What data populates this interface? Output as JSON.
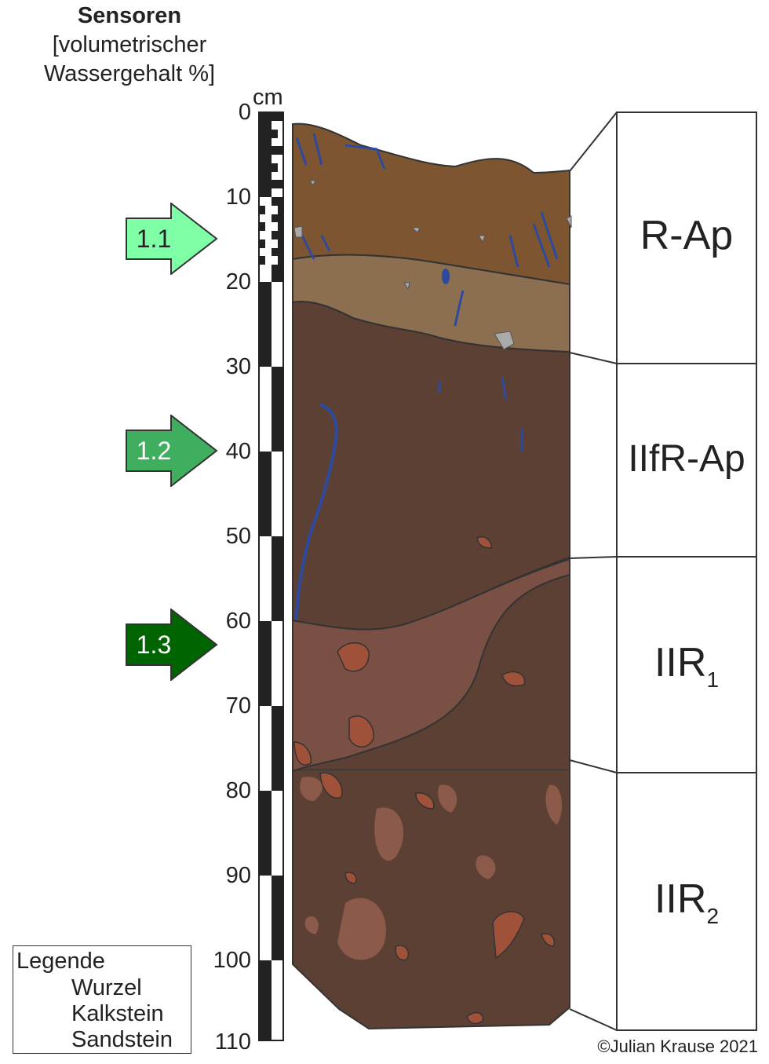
{
  "title": {
    "main": "Sensoren",
    "line1": "[volumetrischer",
    "line2": "Wassergehalt %]"
  },
  "scale": {
    "unit": "cm",
    "ticks": [
      "0",
      "10",
      "20",
      "30",
      "40",
      "50",
      "60",
      "70",
      "80",
      "90",
      "100",
      "110"
    ]
  },
  "sensors": [
    {
      "label": "1.1",
      "color": "#7fffa6",
      "text_color": "#222222"
    },
    {
      "label": "1.2",
      "color": "#3fae5e",
      "text_color": "#ffffff"
    },
    {
      "label": "1.3",
      "color": "#006400",
      "text_color": "#ffffff"
    }
  ],
  "horizons": [
    {
      "name": "R-Ap",
      "sub": ""
    },
    {
      "name": "IIfR-Ap",
      "sub": ""
    },
    {
      "name": "IIR",
      "sub": "1"
    },
    {
      "name": "IIR",
      "sub": "2"
    }
  ],
  "legend": {
    "title": "Legende",
    "items": [
      {
        "label": "Wurzel",
        "icon": "root-icon",
        "color": "#2e4a9e"
      },
      {
        "label": "Kalkstein",
        "icon": "limestone-icon",
        "color": "#999999"
      },
      {
        "label": "Sandstein",
        "icon": "sandstone-icon",
        "color": "#a0513a"
      }
    ]
  },
  "copyright": "©Julian Krause 2021",
  "colors": {
    "topsoil": "#7d5530",
    "light_band": "#8c6f50",
    "dark_horizon": "#5c4033",
    "reddish_layer": "#7a5044",
    "lower_soil": "#5c4033",
    "root": "#2e4a9e",
    "stone": "#a0513a",
    "patch": "#8b5a4a"
  }
}
